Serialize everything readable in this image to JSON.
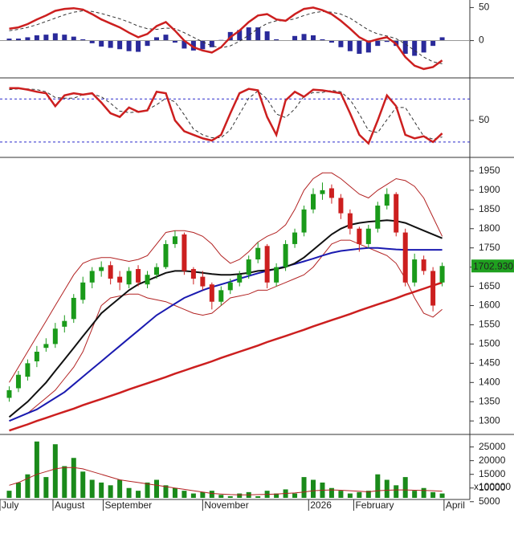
{
  "chart_data": [
    {
      "type": "macd",
      "xlim": [
        -1,
        50
      ],
      "ylim": [
        -54,
        59
      ],
      "yticks": [
        0,
        50
      ],
      "macd": {
        "color": "#cc1f1f",
        "values": [
          18,
          20,
          25,
          32,
          38,
          45,
          48,
          49,
          47,
          40,
          32,
          26,
          20,
          12,
          5,
          10,
          22,
          28,
          15,
          0,
          -10,
          -15,
          -18,
          -10,
          5,
          15,
          28,
          38,
          40,
          32,
          30,
          40,
          48,
          50,
          46,
          40,
          30,
          18,
          5,
          -2,
          2,
          5,
          -5,
          -25,
          -38,
          -43,
          -40,
          -30
        ]
      },
      "signal": {
        "color": "#333333",
        "values": [
          15,
          17,
          20,
          24,
          29,
          34,
          39,
          43,
          45,
          44,
          41,
          37,
          33,
          28,
          22,
          18,
          17,
          19,
          18,
          12,
          5,
          -2,
          -8,
          -11,
          -8,
          -1,
          8,
          18,
          26,
          30,
          30,
          33,
          38,
          42,
          44,
          43,
          40,
          34,
          25,
          16,
          10,
          7,
          3,
          -5,
          -15,
          -25,
          -32,
          -35
        ]
      },
      "histogram": {
        "color": "#2a2a9a",
        "values": [
          3,
          3,
          5,
          8,
          9,
          11,
          9,
          6,
          2,
          -4,
          -9,
          -11,
          -13,
          -16,
          -17,
          -8,
          5,
          9,
          -3,
          -12,
          -15,
          -13,
          -10,
          1,
          13,
          16,
          20,
          20,
          14,
          2,
          0,
          7,
          10,
          8,
          2,
          -3,
          -10,
          -16,
          -20,
          -18,
          -8,
          -2,
          -8,
          -20,
          -23,
          -18,
          -8,
          5
        ]
      }
    },
    {
      "type": "stochastic",
      "xlim": [
        -1,
        50
      ],
      "ylim": [
        3,
        106
      ],
      "yticks": [
        50
      ],
      "levels": [
        20,
        80
      ],
      "level_color": "#2a2acc",
      "k": {
        "color": "#cc1f1f",
        "values": [
          95,
          95,
          93,
          90,
          88,
          70,
          85,
          88,
          86,
          88,
          75,
          60,
          55,
          68,
          62,
          64,
          90,
          88,
          50,
          35,
          30,
          25,
          22,
          30,
          60,
          88,
          94,
          92,
          55,
          30,
          78,
          90,
          83,
          93,
          92,
          90,
          88,
          60,
          30,
          18,
          50,
          85,
          70,
          30,
          25,
          28,
          20,
          32
        ]
      },
      "d": {
        "color": "#333333",
        "values": [
          93,
          94,
          94,
          93,
          90,
          82,
          81,
          81,
          86,
          87,
          83,
          74,
          63,
          61,
          62,
          65,
          72,
          81,
          76,
          58,
          38,
          30,
          26,
          26,
          37,
          59,
          81,
          91,
          80,
          59,
          54,
          66,
          84,
          89,
          89,
          92,
          90,
          79,
          59,
          36,
          33,
          51,
          68,
          68,
          48,
          28,
          24,
          27
        ]
      }
    },
    {
      "type": "candlestick",
      "xlim": [
        -1,
        50
      ],
      "ylim": [
        1267,
        1977
      ],
      "yticks": [
        1300,
        1350,
        1400,
        1450,
        1500,
        1550,
        1600,
        1650,
        1700,
        1750,
        1800,
        1850,
        1900,
        1950
      ],
      "up_color": "#1a9a1a",
      "down_color": "#cc1f1f",
      "open": [
        1360,
        1385,
        1415,
        1455,
        1490,
        1500,
        1545,
        1565,
        1615,
        1660,
        1690,
        1705,
        1675,
        1655,
        1695,
        1655,
        1680,
        1700,
        1760,
        1785,
        1695,
        1675,
        1655,
        1610,
        1640,
        1660,
        1680,
        1720,
        1755,
        1660,
        1700,
        1760,
        1790,
        1850,
        1890,
        1905,
        1880,
        1840,
        1800,
        1760,
        1800,
        1860,
        1890,
        1790,
        1660,
        1720,
        1690,
        1660
      ],
      "high": [
        1390,
        1430,
        1460,
        1495,
        1515,
        1555,
        1575,
        1630,
        1675,
        1700,
        1715,
        1715,
        1690,
        1700,
        1705,
        1690,
        1710,
        1770,
        1795,
        1790,
        1700,
        1690,
        1660,
        1650,
        1670,
        1690,
        1730,
        1765,
        1760,
        1710,
        1770,
        1800,
        1860,
        1905,
        1920,
        1915,
        1890,
        1850,
        1805,
        1810,
        1870,
        1905,
        1895,
        1800,
        1735,
        1730,
        1700,
        1712
      ],
      "low": [
        1350,
        1375,
        1405,
        1440,
        1480,
        1490,
        1530,
        1555,
        1605,
        1645,
        1675,
        1655,
        1640,
        1645,
        1650,
        1645,
        1670,
        1695,
        1750,
        1680,
        1655,
        1640,
        1590,
        1600,
        1630,
        1650,
        1670,
        1710,
        1645,
        1650,
        1690,
        1750,
        1780,
        1840,
        1875,
        1865,
        1825,
        1785,
        1740,
        1750,
        1790,
        1850,
        1780,
        1650,
        1650,
        1680,
        1585,
        1650
      ],
      "close": [
        1380,
        1420,
        1450,
        1480,
        1500,
        1540,
        1560,
        1620,
        1660,
        1690,
        1700,
        1670,
        1660,
        1690,
        1660,
        1680,
        1700,
        1760,
        1780,
        1690,
        1670,
        1650,
        1610,
        1640,
        1660,
        1680,
        1720,
        1750,
        1660,
        1700,
        1760,
        1790,
        1850,
        1890,
        1900,
        1880,
        1840,
        1800,
        1760,
        1800,
        1860,
        1890,
        1790,
        1660,
        1720,
        1690,
        1600,
        1702.93
      ],
      "last_price_label": "1702.930",
      "last_price_color": "#1fa01f",
      "lines": [
        {
          "color": "#b22222",
          "width": 1,
          "values": [
            1400,
            1440,
            1480,
            1520,
            1560,
            1600,
            1640,
            1680,
            1710,
            1720,
            1725,
            1725,
            1720,
            1715,
            1720,
            1730,
            1760,
            1790,
            1795,
            1795,
            1790,
            1780,
            1760,
            1730,
            1710,
            1720,
            1740,
            1765,
            1780,
            1790,
            1810,
            1850,
            1900,
            1930,
            1945,
            1945,
            1930,
            1910,
            1890,
            1880,
            1900,
            1915,
            1930,
            1925,
            1910,
            1880,
            1830,
            1780
          ]
        },
        {
          "color": "#b22222",
          "width": 1,
          "values": [
            1300,
            1310,
            1320,
            1340,
            1360,
            1380,
            1410,
            1440,
            1480,
            1540,
            1600,
            1620,
            1625,
            1630,
            1630,
            1620,
            1615,
            1610,
            1600,
            1590,
            1580,
            1575,
            1580,
            1600,
            1620,
            1625,
            1630,
            1640,
            1640,
            1650,
            1660,
            1670,
            1680,
            1700,
            1730,
            1760,
            1770,
            1770,
            1760,
            1750,
            1740,
            1730,
            1710,
            1670,
            1620,
            1580,
            1570,
            1590
          ]
        },
        {
          "color": "#cc1f1f",
          "width": 2.5,
          "values": [
            1275,
            1283,
            1291,
            1300,
            1308,
            1316,
            1324,
            1332,
            1341,
            1349,
            1357,
            1365,
            1373,
            1382,
            1390,
            1398,
            1406,
            1414,
            1423,
            1431,
            1439,
            1447,
            1455,
            1464,
            1472,
            1480,
            1488,
            1496,
            1505,
            1513,
            1521,
            1529,
            1537,
            1546,
            1554,
            1562,
            1570,
            1578,
            1587,
            1595,
            1603,
            1611,
            1619,
            1628,
            1636,
            1644,
            1652,
            1660
          ]
        },
        {
          "color": "#1a1ab0",
          "width": 2,
          "values": [
            1300,
            1310,
            1320,
            1330,
            1345,
            1360,
            1375,
            1395,
            1415,
            1435,
            1455,
            1475,
            1495,
            1515,
            1535,
            1555,
            1575,
            1590,
            1605,
            1620,
            1630,
            1640,
            1648,
            1655,
            1662,
            1670,
            1677,
            1684,
            1690,
            1696,
            1702,
            1708,
            1715,
            1722,
            1730,
            1737,
            1742,
            1745,
            1748,
            1750,
            1750,
            1748,
            1746,
            1745,
            1745,
            1745,
            1745,
            1745
          ]
        },
        {
          "color": "#111111",
          "width": 2,
          "values": [
            1310,
            1330,
            1350,
            1375,
            1400,
            1430,
            1460,
            1490,
            1520,
            1550,
            1580,
            1600,
            1620,
            1640,
            1655,
            1665,
            1675,
            1685,
            1690,
            1690,
            1688,
            1685,
            1682,
            1680,
            1680,
            1682,
            1685,
            1690,
            1692,
            1695,
            1700,
            1710,
            1725,
            1745,
            1765,
            1785,
            1800,
            1810,
            1815,
            1818,
            1820,
            1822,
            1820,
            1815,
            1805,
            1795,
            1785,
            1775
          ]
        }
      ]
    },
    {
      "type": "bar",
      "xlim": [
        -1,
        50
      ],
      "ylim": [
        6400,
        29000
      ],
      "yticks": [
        5000,
        10000,
        15000,
        20000,
        25000
      ],
      "color": "#1a8a1a",
      "unit_label": "x100000",
      "values": [
        9000,
        12000,
        15000,
        27000,
        14000,
        26000,
        18000,
        21000,
        16000,
        13000,
        12000,
        11000,
        13000,
        10000,
        9000,
        12000,
        13000,
        11000,
        10000,
        9000,
        8000,
        8500,
        9000,
        7500,
        7000,
        8000,
        8500,
        7000,
        9000,
        8000,
        9500,
        8000,
        14000,
        13000,
        12000,
        10000,
        9000,
        8000,
        8500,
        9000,
        15000,
        13000,
        11000,
        14000,
        9000,
        10000,
        8500,
        8000
      ],
      "ma": {
        "color": "#b22222",
        "values": [
          11000,
          12000,
          13500,
          15000,
          16000,
          17000,
          17500,
          17500,
          17000,
          16000,
          15000,
          14000,
          13000,
          12500,
          12000,
          11500,
          11000,
          10500,
          10000,
          9500,
          9000,
          8500,
          8000,
          7800,
          7600,
          7500,
          7500,
          7600,
          7700,
          7800,
          8000,
          8200,
          8500,
          9000,
          9200,
          9300,
          9200,
          9000,
          8800,
          8600,
          9000,
          9200,
          9300,
          9300,
          9200,
          9100,
          9000,
          8800
        ]
      },
      "xticks": [
        {
          "value": -1,
          "label": "July"
        },
        {
          "value": 4.75,
          "label": "August"
        },
        {
          "value": 10.2,
          "label": "September"
        },
        {
          "value": 21,
          "label": "November"
        },
        {
          "value": 32.5,
          "label": "2026"
        },
        {
          "value": 37.4,
          "label": "February"
        },
        {
          "value": 47.2,
          "label": "April"
        }
      ]
    }
  ]
}
